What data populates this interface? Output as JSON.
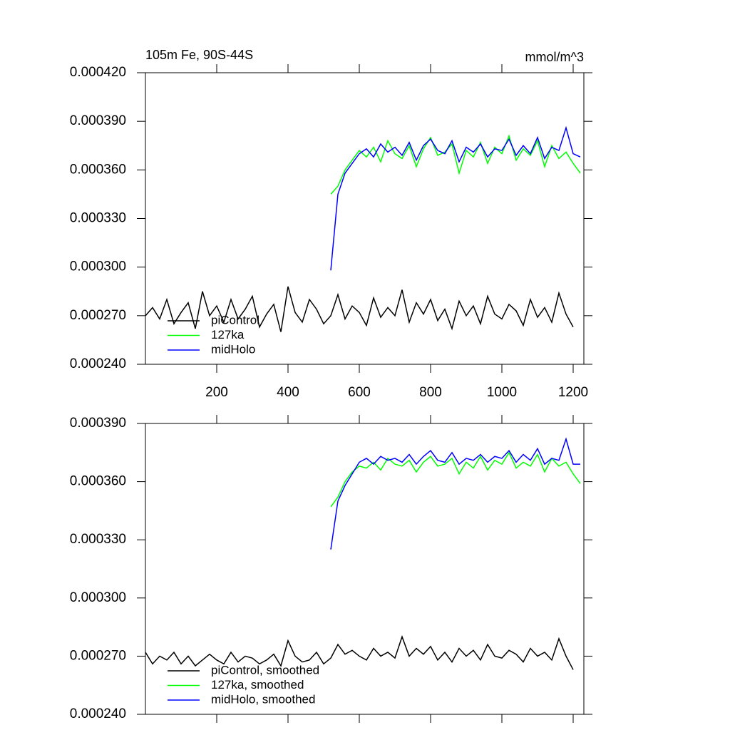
{
  "chart_data": [
    {
      "type": "line",
      "title": "105m Fe, 90S-44S",
      "subtitle": "mmol/m^3",
      "x": [
        0,
        20,
        40,
        60,
        80,
        100,
        120,
        140,
        160,
        180,
        200,
        220,
        240,
        260,
        280,
        300,
        320,
        340,
        360,
        380,
        400,
        420,
        440,
        460,
        480,
        500,
        520,
        540,
        560,
        580,
        600,
        620,
        640,
        660,
        680,
        700,
        720,
        740,
        760,
        780,
        800,
        820,
        840,
        860,
        880,
        900,
        920,
        940,
        960,
        980,
        1000,
        1020,
        1040,
        1060,
        1080,
        1100,
        1120,
        1140,
        1160,
        1180,
        1200,
        1220
      ],
      "xlim": [
        0,
        1230
      ],
      "xticks": [
        200,
        400,
        600,
        800,
        1000,
        1200
      ],
      "ylim": [
        0.00024,
        0.00042
      ],
      "yticks": [
        {
          "value": 0.00024,
          "label": "0.000240"
        },
        {
          "value": 0.00027,
          "label": "0.000270"
        },
        {
          "value": 0.0003,
          "label": "0.000300"
        },
        {
          "value": 0.00033,
          "label": "0.000330"
        },
        {
          "value": 0.00036,
          "label": "0.000360"
        },
        {
          "value": 0.00039,
          "label": "0.000390"
        },
        {
          "value": 0.00042,
          "label": "0.000420"
        }
      ],
      "series": [
        {
          "name": "piControl",
          "color": "#000000",
          "values": [
            0.00027,
            0.000275,
            0.000268,
            0.00028,
            0.000265,
            0.000272,
            0.000278,
            0.000262,
            0.000285,
            0.00027,
            0.000276,
            0.000266,
            0.00028,
            0.000268,
            0.000274,
            0.000282,
            0.000263,
            0.000271,
            0.000277,
            0.00026,
            0.000288,
            0.000272,
            0.000266,
            0.00028,
            0.000274,
            0.000265,
            0.00027,
            0.000283,
            0.000268,
            0.000276,
            0.000272,
            0.000264,
            0.000281,
            0.000269,
            0.000275,
            0.00027,
            0.000286,
            0.000266,
            0.000278,
            0.000271,
            0.00028,
            0.000267,
            0.000274,
            0.000262,
            0.000279,
            0.00027,
            0.000276,
            0.000265,
            0.000282,
            0.000271,
            0.000268,
            0.000277,
            0.000273,
            0.000264,
            0.00028,
            0.000269,
            0.000275,
            0.000266,
            0.000284,
            0.000271,
            0.000263,
            null
          ]
        },
        {
          "name": "127ka",
          "color": "#00ff00",
          "values": [
            null,
            null,
            null,
            null,
            null,
            null,
            null,
            null,
            null,
            null,
            null,
            null,
            null,
            null,
            null,
            null,
            null,
            null,
            null,
            null,
            null,
            null,
            null,
            null,
            null,
            null,
            0.000345,
            0.00035,
            0.00036,
            0.000366,
            0.000372,
            0.000368,
            0.000374,
            0.000365,
            0.000378,
            0.00037,
            0.000367,
            0.000375,
            0.000362,
            0.000373,
            0.00038,
            0.000369,
            0.000371,
            0.000376,
            0.000358,
            0.000372,
            0.000368,
            0.000377,
            0.000364,
            0.000374,
            0.00037,
            0.000381,
            0.000366,
            0.000373,
            0.000369,
            0.000378,
            0.000362,
            0.000375,
            0.000367,
            0.000371,
            0.000364,
            0.000358
          ]
        },
        {
          "name": "midHolo",
          "color": "#0000ff",
          "values": [
            null,
            null,
            null,
            null,
            null,
            null,
            null,
            null,
            null,
            null,
            null,
            null,
            null,
            null,
            null,
            null,
            null,
            null,
            null,
            null,
            null,
            null,
            null,
            null,
            null,
            null,
            0.000298,
            0.000345,
            0.000358,
            0.000364,
            0.00037,
            0.000373,
            0.000368,
            0.000376,
            0.000371,
            0.000374,
            0.000369,
            0.000377,
            0.000366,
            0.000375,
            0.000379,
            0.000372,
            0.00037,
            0.000378,
            0.000365,
            0.000374,
            0.000371,
            0.000376,
            0.000368,
            0.000373,
            0.000372,
            0.000379,
            0.000369,
            0.000375,
            0.00037,
            0.00038,
            0.000367,
            0.000374,
            0.000372,
            0.000386,
            0.00037,
            0.000368
          ]
        }
      ]
    },
    {
      "type": "line",
      "x": [
        0,
        20,
        40,
        60,
        80,
        100,
        120,
        140,
        160,
        180,
        200,
        220,
        240,
        260,
        280,
        300,
        320,
        340,
        360,
        380,
        400,
        420,
        440,
        460,
        480,
        500,
        520,
        540,
        560,
        580,
        600,
        620,
        640,
        660,
        680,
        700,
        720,
        740,
        760,
        780,
        800,
        820,
        840,
        860,
        880,
        900,
        920,
        940,
        960,
        980,
        1000,
        1020,
        1040,
        1060,
        1080,
        1100,
        1120,
        1140,
        1160,
        1180,
        1200,
        1220
      ],
      "xlim": [
        0,
        1230
      ],
      "ylim": [
        0.00024,
        0.00039
      ],
      "yticks": [
        {
          "value": 0.00024,
          "label": "0.000240"
        },
        {
          "value": 0.00027,
          "label": "0.000270"
        },
        {
          "value": 0.0003,
          "label": "0.000300"
        },
        {
          "value": 0.00033,
          "label": "0.000330"
        },
        {
          "value": 0.00036,
          "label": "0.000360"
        },
        {
          "value": 0.00039,
          "label": "0.000390"
        }
      ],
      "series": [
        {
          "name": "piControl, smoothed",
          "color": "#000000",
          "values": [
            0.000272,
            0.000266,
            0.00027,
            0.000268,
            0.000272,
            0.000266,
            0.00027,
            0.000265,
            0.000268,
            0.000271,
            0.000268,
            0.000266,
            0.000272,
            0.000267,
            0.00027,
            0.000269,
            0.000266,
            0.000268,
            0.000271,
            0.000265,
            0.000278,
            0.00027,
            0.000267,
            0.000268,
            0.000272,
            0.000266,
            0.000269,
            0.000276,
            0.000271,
            0.000273,
            0.00027,
            0.000268,
            0.000274,
            0.00027,
            0.000272,
            0.000269,
            0.00028,
            0.00027,
            0.000274,
            0.000271,
            0.000275,
            0.000268,
            0.000272,
            0.000267,
            0.000274,
            0.00027,
            0.000273,
            0.000268,
            0.000276,
            0.00027,
            0.000269,
            0.000273,
            0.000271,
            0.000267,
            0.000274,
            0.00027,
            0.000272,
            0.000268,
            0.000279,
            0.00027,
            0.000263,
            null
          ]
        },
        {
          "name": "127ka, smoothed",
          "color": "#00ff00",
          "values": [
            null,
            null,
            null,
            null,
            null,
            null,
            null,
            null,
            null,
            null,
            null,
            null,
            null,
            null,
            null,
            null,
            null,
            null,
            null,
            null,
            null,
            null,
            null,
            null,
            null,
            null,
            0.000347,
            0.000352,
            0.00036,
            0.000365,
            0.000368,
            0.000367,
            0.00037,
            0.000366,
            0.000372,
            0.000369,
            0.000368,
            0.000371,
            0.000365,
            0.00037,
            0.000373,
            0.000368,
            0.000369,
            0.000372,
            0.000364,
            0.00037,
            0.000367,
            0.000373,
            0.000366,
            0.000371,
            0.000369,
            0.000375,
            0.000367,
            0.00037,
            0.000368,
            0.000374,
            0.000365,
            0.000372,
            0.000368,
            0.00037,
            0.000364,
            0.000359
          ]
        },
        {
          "name": "midHolo, smoothed",
          "color": "#0000ff",
          "values": [
            null,
            null,
            null,
            null,
            null,
            null,
            null,
            null,
            null,
            null,
            null,
            null,
            null,
            null,
            null,
            null,
            null,
            null,
            null,
            null,
            null,
            null,
            null,
            null,
            null,
            null,
            0.000325,
            0.00035,
            0.000358,
            0.000364,
            0.00037,
            0.000372,
            0.000369,
            0.000373,
            0.000371,
            0.000372,
            0.00037,
            0.000374,
            0.000369,
            0.000373,
            0.000376,
            0.000371,
            0.00037,
            0.000375,
            0.000369,
            0.000372,
            0.000371,
            0.000374,
            0.00037,
            0.000373,
            0.000372,
            0.000376,
            0.00037,
            0.000374,
            0.000371,
            0.000377,
            0.000369,
            0.000372,
            0.000371,
            0.000382,
            0.000369,
            0.000369
          ]
        }
      ]
    }
  ]
}
